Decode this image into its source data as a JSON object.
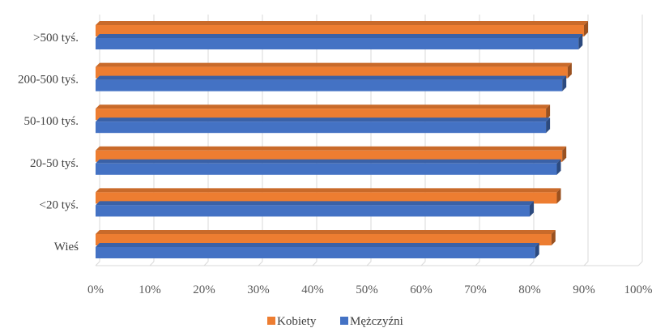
{
  "chart_data": {
    "type": "bar",
    "orientation": "horizontal",
    "categories": [
      ">500 tyś.",
      "200-500 tyś.",
      "50-100 tyś.",
      "20-50 tyś.",
      "<20 tyś.",
      "Wieś"
    ],
    "series": [
      {
        "name": "Kobiety",
        "values": [
          90,
          87,
          83,
          86,
          85,
          84
        ]
      },
      {
        "name": "Mężczyźni",
        "values": [
          89,
          86,
          83,
          85,
          80,
          81
        ]
      }
    ],
    "xlim": [
      0,
      100
    ],
    "x_ticks": [
      "0%",
      "10%",
      "20%",
      "30%",
      "40%",
      "50%",
      "60%",
      "70%",
      "80%",
      "90%",
      "100%"
    ],
    "grid": "vertical",
    "legend": "bottom-center",
    "colors": {
      "Kobiety": "#ED7D31",
      "Mężczyźni": "#4472C4"
    }
  }
}
